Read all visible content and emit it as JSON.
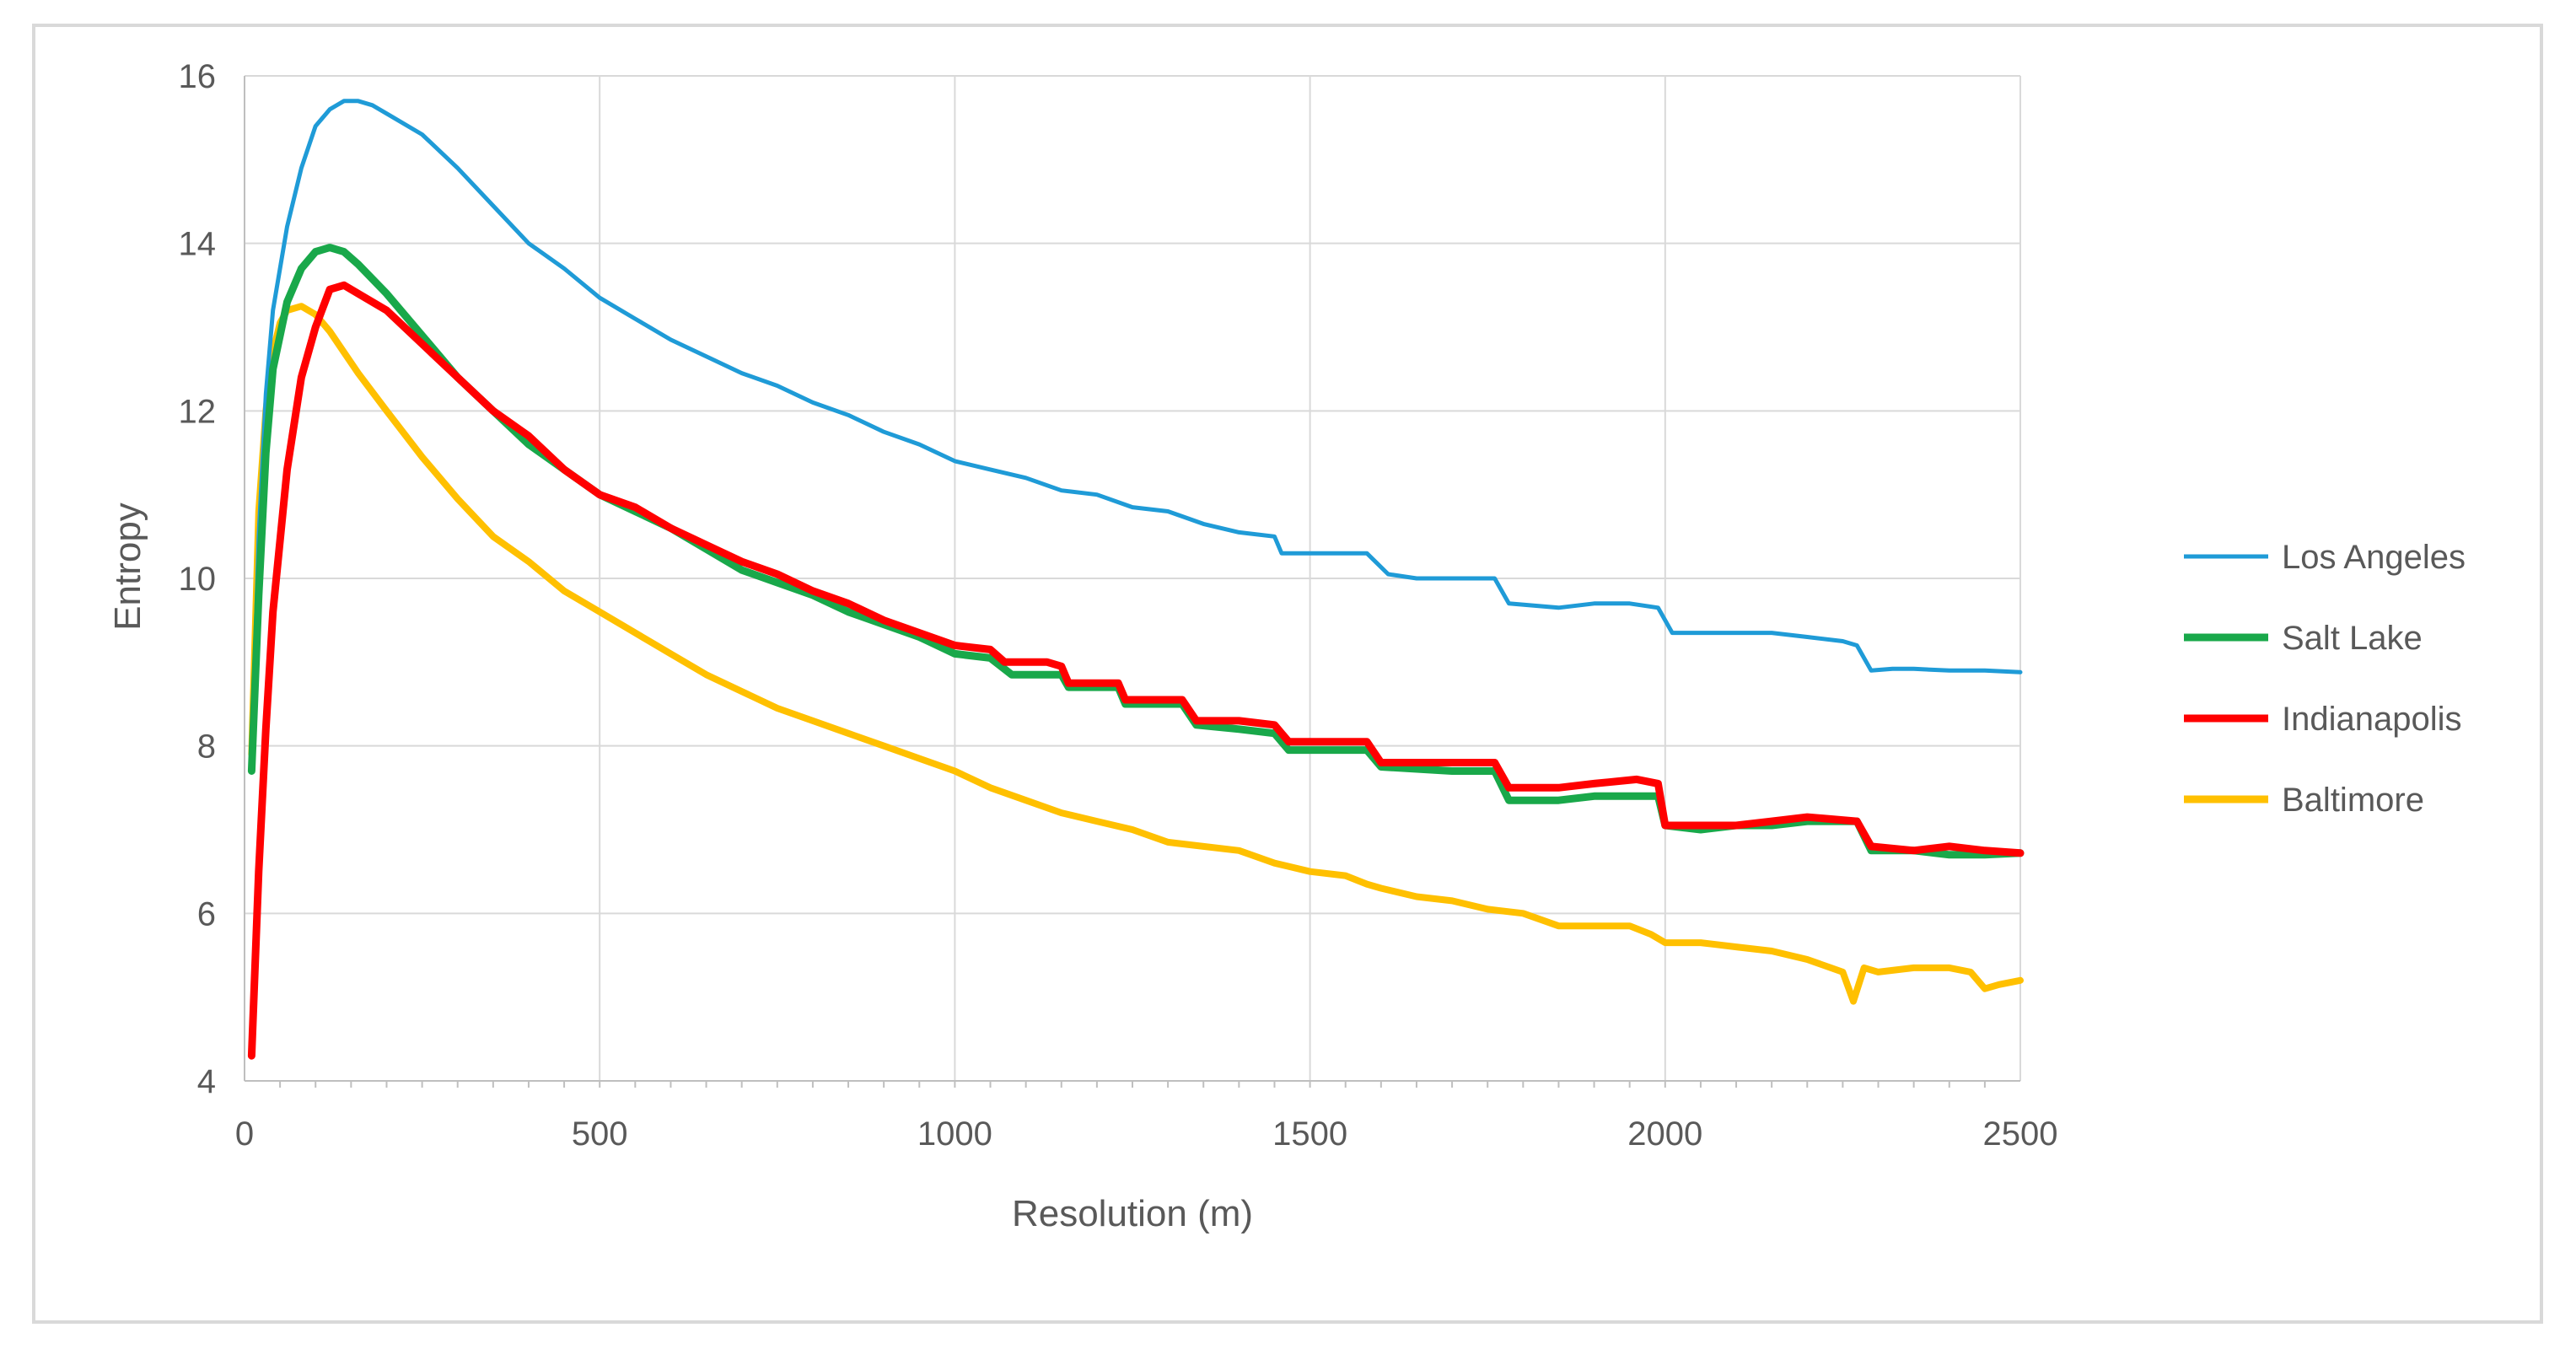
{
  "chart_data": {
    "type": "line",
    "title": "",
    "xlabel": "Resolution (m)",
    "ylabel": "Entropy",
    "xlim": [
      0,
      2500
    ],
    "ylim": [
      4,
      16
    ],
    "xticks": [
      "0",
      "500",
      "1000",
      "1500",
      "2000",
      "2500"
    ],
    "yticks": [
      "4",
      "6",
      "8",
      "10",
      "12",
      "14",
      "16"
    ],
    "grid": true,
    "legend_position": "right",
    "series": [
      {
        "name": "Los Angeles",
        "color": "#1f9bd7",
        "points": [
          [
            10,
            7.8
          ],
          [
            20,
            10.5
          ],
          [
            30,
            12.2
          ],
          [
            40,
            13.2
          ],
          [
            60,
            14.2
          ],
          [
            80,
            14.9
          ],
          [
            100,
            15.4
          ],
          [
            120,
            15.6
          ],
          [
            140,
            15.7
          ],
          [
            160,
            15.7
          ],
          [
            180,
            15.65
          ],
          [
            200,
            15.55
          ],
          [
            250,
            15.3
          ],
          [
            300,
            14.9
          ],
          [
            350,
            14.45
          ],
          [
            400,
            14.0
          ],
          [
            450,
            13.7
          ],
          [
            500,
            13.35
          ],
          [
            550,
            13.1
          ],
          [
            600,
            12.85
          ],
          [
            650,
            12.65
          ],
          [
            700,
            12.45
          ],
          [
            750,
            12.3
          ],
          [
            800,
            12.1
          ],
          [
            850,
            11.95
          ],
          [
            900,
            11.75
          ],
          [
            950,
            11.6
          ],
          [
            1000,
            11.4
          ],
          [
            1050,
            11.3
          ],
          [
            1100,
            11.2
          ],
          [
            1150,
            11.05
          ],
          [
            1200,
            11.0
          ],
          [
            1250,
            10.85
          ],
          [
            1300,
            10.8
          ],
          [
            1350,
            10.65
          ],
          [
            1400,
            10.55
          ],
          [
            1450,
            10.5
          ],
          [
            1460,
            10.3
          ],
          [
            1500,
            10.3
          ],
          [
            1550,
            10.3
          ],
          [
            1580,
            10.3
          ],
          [
            1610,
            10.05
          ],
          [
            1650,
            10.0
          ],
          [
            1700,
            10.0
          ],
          [
            1760,
            10.0
          ],
          [
            1780,
            9.7
          ],
          [
            1850,
            9.65
          ],
          [
            1900,
            9.7
          ],
          [
            1950,
            9.7
          ],
          [
            1990,
            9.65
          ],
          [
            2010,
            9.35
          ],
          [
            2050,
            9.35
          ],
          [
            2100,
            9.35
          ],
          [
            2150,
            9.35
          ],
          [
            2200,
            9.3
          ],
          [
            2250,
            9.25
          ],
          [
            2270,
            9.2
          ],
          [
            2290,
            8.9
          ],
          [
            2320,
            8.92
          ],
          [
            2350,
            8.92
          ],
          [
            2400,
            8.9
          ],
          [
            2450,
            8.9
          ],
          [
            2500,
            8.88
          ]
        ]
      },
      {
        "name": "Salt Lake",
        "color": "#19a84a",
        "points": [
          [
            10,
            7.7
          ],
          [
            20,
            9.8
          ],
          [
            30,
            11.5
          ],
          [
            40,
            12.5
          ],
          [
            60,
            13.3
          ],
          [
            80,
            13.7
          ],
          [
            100,
            13.9
          ],
          [
            120,
            13.95
          ],
          [
            140,
            13.9
          ],
          [
            160,
            13.75
          ],
          [
            200,
            13.4
          ],
          [
            250,
            12.9
          ],
          [
            300,
            12.4
          ],
          [
            350,
            12.0
          ],
          [
            400,
            11.6
          ],
          [
            450,
            11.3
          ],
          [
            500,
            11.0
          ],
          [
            550,
            10.8
          ],
          [
            600,
            10.6
          ],
          [
            650,
            10.35
          ],
          [
            700,
            10.1
          ],
          [
            750,
            9.95
          ],
          [
            800,
            9.8
          ],
          [
            850,
            9.6
          ],
          [
            900,
            9.45
          ],
          [
            950,
            9.3
          ],
          [
            1000,
            9.1
          ],
          [
            1050,
            9.05
          ],
          [
            1080,
            8.85
          ],
          [
            1150,
            8.85
          ],
          [
            1160,
            8.7
          ],
          [
            1230,
            8.7
          ],
          [
            1240,
            8.5
          ],
          [
            1320,
            8.5
          ],
          [
            1340,
            8.25
          ],
          [
            1400,
            8.2
          ],
          [
            1450,
            8.15
          ],
          [
            1470,
            7.95
          ],
          [
            1580,
            7.95
          ],
          [
            1600,
            7.75
          ],
          [
            1700,
            7.7
          ],
          [
            1760,
            7.7
          ],
          [
            1780,
            7.35
          ],
          [
            1850,
            7.35
          ],
          [
            1900,
            7.4
          ],
          [
            1960,
            7.4
          ],
          [
            1990,
            7.4
          ],
          [
            2000,
            7.05
          ],
          [
            2050,
            7.0
          ],
          [
            2100,
            7.05
          ],
          [
            2150,
            7.05
          ],
          [
            2200,
            7.1
          ],
          [
            2270,
            7.1
          ],
          [
            2290,
            6.75
          ],
          [
            2350,
            6.75
          ],
          [
            2400,
            6.7
          ],
          [
            2450,
            6.7
          ],
          [
            2500,
            6.72
          ]
        ]
      },
      {
        "name": "Indianapolis",
        "color": "#ff0000",
        "points": [
          [
            10,
            4.3
          ],
          [
            20,
            6.5
          ],
          [
            30,
            8.2
          ],
          [
            40,
            9.6
          ],
          [
            60,
            11.3
          ],
          [
            80,
            12.4
          ],
          [
            100,
            13.0
          ],
          [
            120,
            13.45
          ],
          [
            140,
            13.5
          ],
          [
            160,
            13.4
          ],
          [
            200,
            13.2
          ],
          [
            250,
            12.8
          ],
          [
            300,
            12.4
          ],
          [
            350,
            12.0
          ],
          [
            400,
            11.7
          ],
          [
            450,
            11.3
          ],
          [
            500,
            11.0
          ],
          [
            550,
            10.85
          ],
          [
            600,
            10.6
          ],
          [
            650,
            10.4
          ],
          [
            700,
            10.2
          ],
          [
            750,
            10.05
          ],
          [
            800,
            9.85
          ],
          [
            850,
            9.7
          ],
          [
            900,
            9.5
          ],
          [
            950,
            9.35
          ],
          [
            1000,
            9.2
          ],
          [
            1050,
            9.15
          ],
          [
            1070,
            9.0
          ],
          [
            1130,
            9.0
          ],
          [
            1150,
            8.95
          ],
          [
            1160,
            8.75
          ],
          [
            1230,
            8.75
          ],
          [
            1240,
            8.55
          ],
          [
            1320,
            8.55
          ],
          [
            1340,
            8.3
          ],
          [
            1400,
            8.3
          ],
          [
            1450,
            8.25
          ],
          [
            1470,
            8.05
          ],
          [
            1580,
            8.05
          ],
          [
            1600,
            7.8
          ],
          [
            1700,
            7.8
          ],
          [
            1760,
            7.8
          ],
          [
            1780,
            7.5
          ],
          [
            1850,
            7.5
          ],
          [
            1900,
            7.55
          ],
          [
            1960,
            7.6
          ],
          [
            1990,
            7.55
          ],
          [
            2000,
            7.05
          ],
          [
            2050,
            7.05
          ],
          [
            2100,
            7.05
          ],
          [
            2150,
            7.1
          ],
          [
            2200,
            7.15
          ],
          [
            2270,
            7.1
          ],
          [
            2290,
            6.8
          ],
          [
            2350,
            6.75
          ],
          [
            2400,
            6.8
          ],
          [
            2450,
            6.75
          ],
          [
            2500,
            6.72
          ]
        ]
      },
      {
        "name": "Baltimore",
        "color": "#ffc000",
        "points": [
          [
            10,
            7.9
          ],
          [
            20,
            10.8
          ],
          [
            30,
            12.0
          ],
          [
            40,
            12.7
          ],
          [
            50,
            13.05
          ],
          [
            60,
            13.2
          ],
          [
            80,
            13.25
          ],
          [
            100,
            13.15
          ],
          [
            120,
            12.95
          ],
          [
            140,
            12.7
          ],
          [
            160,
            12.45
          ],
          [
            200,
            12.0
          ],
          [
            250,
            11.45
          ],
          [
            300,
            10.95
          ],
          [
            350,
            10.5
          ],
          [
            400,
            10.2
          ],
          [
            450,
            9.85
          ],
          [
            500,
            9.6
          ],
          [
            550,
            9.35
          ],
          [
            600,
            9.1
          ],
          [
            650,
            8.85
          ],
          [
            700,
            8.65
          ],
          [
            750,
            8.45
          ],
          [
            800,
            8.3
          ],
          [
            850,
            8.15
          ],
          [
            900,
            8.0
          ],
          [
            950,
            7.85
          ],
          [
            1000,
            7.7
          ],
          [
            1050,
            7.5
          ],
          [
            1100,
            7.35
          ],
          [
            1150,
            7.2
          ],
          [
            1200,
            7.1
          ],
          [
            1250,
            7.0
          ],
          [
            1300,
            6.85
          ],
          [
            1350,
            6.8
          ],
          [
            1400,
            6.75
          ],
          [
            1450,
            6.6
          ],
          [
            1500,
            6.5
          ],
          [
            1550,
            6.45
          ],
          [
            1580,
            6.35
          ],
          [
            1600,
            6.3
          ],
          [
            1650,
            6.2
          ],
          [
            1700,
            6.15
          ],
          [
            1750,
            6.05
          ],
          [
            1800,
            6.0
          ],
          [
            1850,
            5.85
          ],
          [
            1900,
            5.85
          ],
          [
            1950,
            5.85
          ],
          [
            1980,
            5.75
          ],
          [
            2000,
            5.65
          ],
          [
            2050,
            5.65
          ],
          [
            2100,
            5.6
          ],
          [
            2150,
            5.55
          ],
          [
            2200,
            5.45
          ],
          [
            2250,
            5.3
          ],
          [
            2265,
            4.95
          ],
          [
            2280,
            5.35
          ],
          [
            2300,
            5.3
          ],
          [
            2350,
            5.35
          ],
          [
            2400,
            5.35
          ],
          [
            2430,
            5.3
          ],
          [
            2450,
            5.1
          ],
          [
            2470,
            5.15
          ],
          [
            2500,
            5.2
          ]
        ]
      }
    ]
  }
}
